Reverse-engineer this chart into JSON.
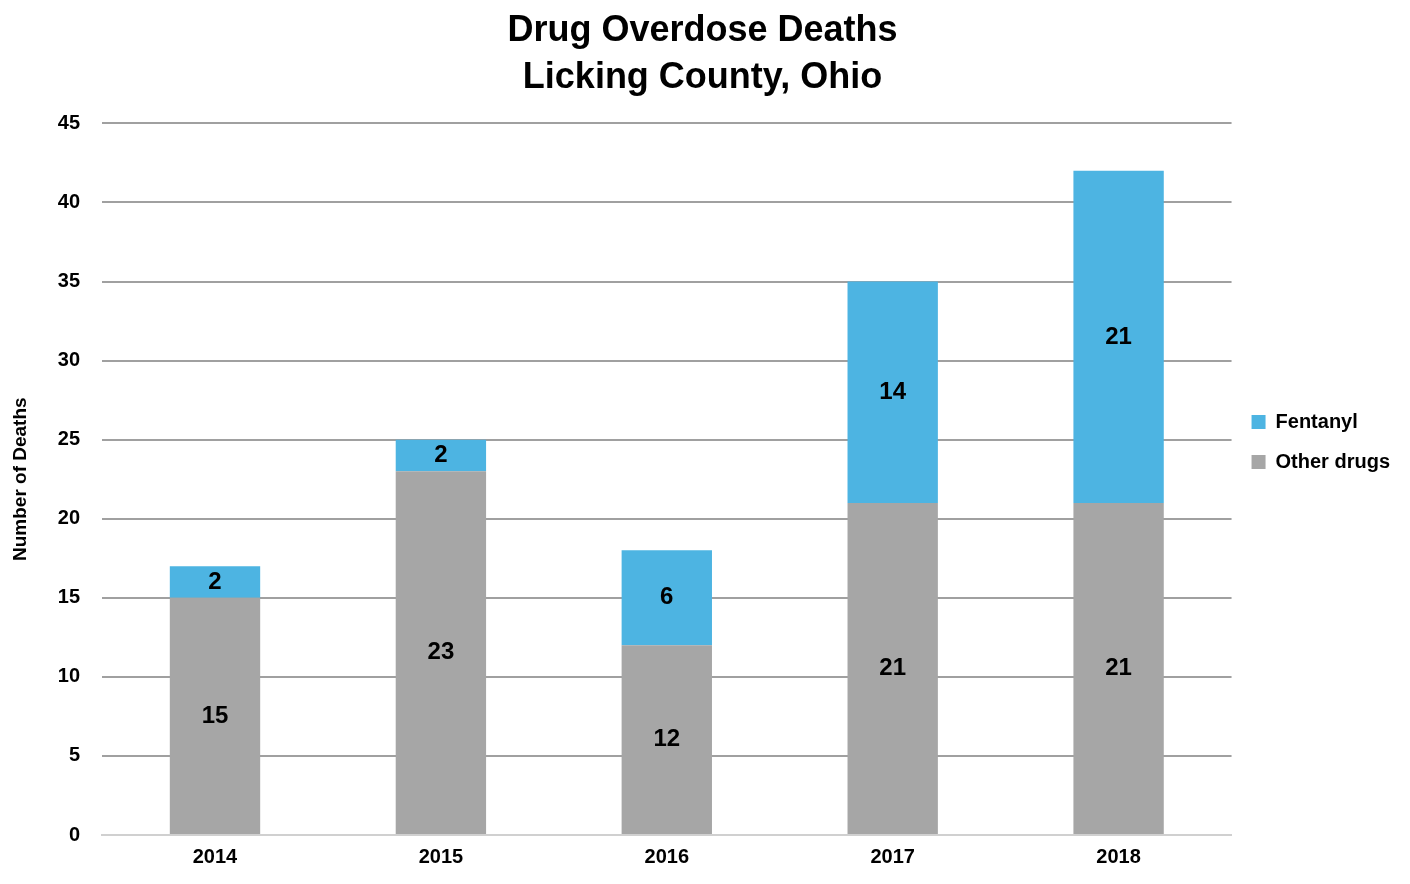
{
  "chart_data": {
    "type": "bar",
    "title": "Drug Overdose Deaths",
    "subtitle": "Licking County, Ohio",
    "ylabel": "Number of Deaths",
    "categories": [
      "2014",
      "2015",
      "2016",
      "2017",
      "2018"
    ],
    "series": [
      {
        "name": "Other drugs",
        "color": "#a6a6a6",
        "values": [
          15,
          23,
          12,
          21,
          21
        ]
      },
      {
        "name": "Fentanyl",
        "color": "#4db4e2",
        "values": [
          2,
          2,
          6,
          14,
          21
        ]
      }
    ],
    "stacked": true,
    "ylim": [
      0,
      45
    ],
    "yticks": [
      0,
      5,
      10,
      15,
      20,
      25,
      30,
      35,
      40,
      45
    ],
    "grid": "y",
    "legend": "right",
    "data_labels": true
  }
}
